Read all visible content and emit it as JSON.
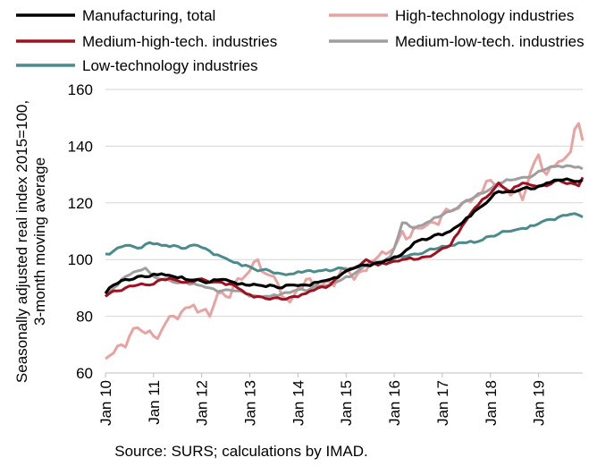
{
  "chart_data": {
    "type": "line",
    "ylabel": "Seasonally adjusted real index 2015=100, 3-month moving average",
    "ylabel_lines": [
      "Seasonally adjusted real index 2015=100,",
      "3-month moving average"
    ],
    "source": "Source: SURS; calculations by IMAD.",
    "ylim": [
      60,
      160
    ],
    "yticks": [
      60,
      80,
      100,
      120,
      140,
      160
    ],
    "grid": true,
    "legend_position": "top",
    "x_start": "Jan 10",
    "x_end": "Dec 19",
    "xtick_labels": [
      "Jan 10",
      "Jan 11",
      "Jan 12",
      "Jan 13",
      "Jan 14",
      "Jan 15",
      "Jan 16",
      "Jan 17",
      "Jan 18",
      "Jan 19"
    ],
    "series": [
      {
        "name": "Manufacturing, total",
        "color": "#000000",
        "keyframes": [
          [
            "Jan 10",
            88
          ],
          [
            "Mar 10",
            91
          ],
          [
            "Jun 10",
            93
          ],
          [
            "Sep 10",
            94
          ],
          [
            "Dec 10",
            94
          ],
          [
            "Mar 11",
            95
          ],
          [
            "Jun 11",
            94
          ],
          [
            "Sep 11",
            93
          ],
          [
            "Dec 11",
            93
          ],
          [
            "Mar 12",
            92
          ],
          [
            "Jun 12",
            93
          ],
          [
            "Sep 12",
            92
          ],
          [
            "Dec 12",
            91
          ],
          [
            "Mar 13",
            91
          ],
          [
            "Jun 13",
            91
          ],
          [
            "Sep 13",
            90
          ],
          [
            "Dec 13",
            91
          ],
          [
            "Mar 14",
            91
          ],
          [
            "Jun 14",
            92
          ],
          [
            "Sep 14",
            93
          ],
          [
            "Dec 14",
            95
          ],
          [
            "Mar 15",
            97
          ],
          [
            "Jun 15",
            98
          ],
          [
            "Sep 15",
            99
          ],
          [
            "Dec 15",
            100
          ],
          [
            "Mar 16",
            102
          ],
          [
            "Jun 16",
            106
          ],
          [
            "Sep 16",
            107
          ],
          [
            "Dec 16",
            109
          ],
          [
            "Mar 17",
            110
          ],
          [
            "Jun 17",
            113
          ],
          [
            "Sep 17",
            117
          ],
          [
            "Dec 17",
            120
          ],
          [
            "Mar 18",
            124
          ],
          [
            "Jun 18",
            124
          ],
          [
            "Sep 18",
            125
          ],
          [
            "Dec 18",
            125
          ],
          [
            "Mar 19",
            127
          ],
          [
            "Jun 19",
            128
          ],
          [
            "Sep 19",
            128
          ],
          [
            "Dec 19",
            128
          ]
        ]
      },
      {
        "name": "High-technology industries",
        "color": "#e8a3a0",
        "keyframes": [
          [
            "Jan 10",
            65
          ],
          [
            "Mar 10",
            67
          ],
          [
            "May 10",
            70
          ],
          [
            "Jul 10",
            73
          ],
          [
            "Sep 10",
            76
          ],
          [
            "Nov 10",
            74
          ],
          [
            "Jan 11",
            73
          ],
          [
            "Mar 11",
            75
          ],
          [
            "May 11",
            80
          ],
          [
            "Jul 11",
            79
          ],
          [
            "Sep 11",
            83
          ],
          [
            "Nov 11",
            84
          ],
          [
            "Jan 12",
            82
          ],
          [
            "Mar 12",
            80
          ],
          [
            "May 12",
            88
          ],
          [
            "Jul 12",
            87
          ],
          [
            "Sep 12",
            91
          ],
          [
            "Nov 12",
            93
          ],
          [
            "Jan 13",
            96
          ],
          [
            "Mar 13",
            100
          ],
          [
            "May 13",
            95
          ],
          [
            "Jul 13",
            94
          ],
          [
            "Sep 13",
            87
          ],
          [
            "Nov 13",
            85
          ],
          [
            "Jan 14",
            90
          ],
          [
            "Mar 14",
            93
          ],
          [
            "May 14",
            90
          ],
          [
            "Jul 14",
            91
          ],
          [
            "Sep 14",
            92
          ],
          [
            "Nov 14",
            94
          ],
          [
            "Jan 15",
            97
          ],
          [
            "Mar 15",
            93
          ],
          [
            "May 15",
            96
          ],
          [
            "Jul 15",
            99
          ],
          [
            "Sep 15",
            101
          ],
          [
            "Nov 15",
            102
          ],
          [
            "Jan 16",
            104
          ],
          [
            "Mar 16",
            110
          ],
          [
            "May 16",
            108
          ],
          [
            "Jul 16",
            111
          ],
          [
            "Sep 16",
            112
          ],
          [
            "Nov 16",
            113
          ],
          [
            "Jan 17",
            116
          ],
          [
            "Mar 17",
            117
          ],
          [
            "May 17",
            118
          ],
          [
            "Jul 17",
            121
          ],
          [
            "Sep 17",
            122
          ],
          [
            "Nov 17",
            124
          ],
          [
            "Jan 18",
            128
          ],
          [
            "Mar 18",
            126
          ],
          [
            "May 18",
            125
          ],
          [
            "Jul 18",
            124
          ],
          [
            "Sep 18",
            121
          ],
          [
            "Nov 18",
            131
          ],
          [
            "Jan 19",
            137
          ],
          [
            "Mar 19",
            130
          ],
          [
            "May 19",
            133
          ],
          [
            "Jul 19",
            135
          ],
          [
            "Sep 19",
            138
          ],
          [
            "Oct 19",
            146
          ],
          [
            "Nov 19",
            148
          ],
          [
            "Dec 19",
            142
          ]
        ]
      },
      {
        "name": "Medium-high-tech. industries",
        "color": "#a1101f",
        "keyframes": [
          [
            "Jan 10",
            87
          ],
          [
            "Mar 10",
            89
          ],
          [
            "Jun 10",
            90
          ],
          [
            "Sep 10",
            91
          ],
          [
            "Dec 10",
            91
          ],
          [
            "Mar 11",
            93
          ],
          [
            "Jun 11",
            93
          ],
          [
            "Sep 11",
            92
          ],
          [
            "Dec 11",
            93
          ],
          [
            "Mar 12",
            92
          ],
          [
            "Jun 12",
            92
          ],
          [
            "Sep 12",
            91
          ],
          [
            "Dec 12",
            88
          ],
          [
            "Mar 13",
            87
          ],
          [
            "Jun 13",
            86
          ],
          [
            "Sep 13",
            86
          ],
          [
            "Dec 13",
            87
          ],
          [
            "Mar 14",
            88
          ],
          [
            "Jun 14",
            90
          ],
          [
            "Sep 14",
            91
          ],
          [
            "Dec 14",
            95
          ],
          [
            "Mar 15",
            97
          ],
          [
            "Jun 15",
            100
          ],
          [
            "Sep 15",
            98
          ],
          [
            "Dec 15",
            99
          ],
          [
            "Mar 16",
            100
          ],
          [
            "Jun 16",
            100
          ],
          [
            "Sep 16",
            101
          ],
          [
            "Dec 16",
            103
          ],
          [
            "Mar 17",
            105
          ],
          [
            "Jun 17",
            112
          ],
          [
            "Sep 17",
            118
          ],
          [
            "Dec 17",
            122
          ],
          [
            "Mar 18",
            127
          ],
          [
            "Jun 18",
            124
          ],
          [
            "Sep 18",
            127
          ],
          [
            "Dec 18",
            126
          ],
          [
            "Mar 19",
            126
          ],
          [
            "Jun 19",
            128
          ],
          [
            "Sep 19",
            127
          ],
          [
            "Nov 19",
            126
          ],
          [
            "Dec 19",
            129
          ]
        ]
      },
      {
        "name": "Medium-low-tech. industries",
        "color": "#9e9e9e",
        "keyframes": [
          [
            "Jan 10",
            87
          ],
          [
            "Mar 10",
            90
          ],
          [
            "Jun 10",
            94
          ],
          [
            "Sep 10",
            96
          ],
          [
            "Nov 10",
            97
          ],
          [
            "Jan 11",
            94
          ],
          [
            "Mar 11",
            93
          ],
          [
            "Jun 11",
            92
          ],
          [
            "Sep 11",
            92
          ],
          [
            "Dec 11",
            91
          ],
          [
            "Mar 12",
            90
          ],
          [
            "Jun 12",
            89
          ],
          [
            "Sep 12",
            89
          ],
          [
            "Dec 12",
            88
          ],
          [
            "Mar 13",
            87
          ],
          [
            "Jun 13",
            87
          ],
          [
            "Sep 13",
            88
          ],
          [
            "Dec 13",
            89
          ],
          [
            "Mar 14",
            89
          ],
          [
            "Jun 14",
            91
          ],
          [
            "Sep 14",
            91
          ],
          [
            "Dec 14",
            93
          ],
          [
            "Mar 15",
            95
          ],
          [
            "Jun 15",
            98
          ],
          [
            "Sep 15",
            99
          ],
          [
            "Dec 15",
            101
          ],
          [
            "Jan 16",
            104
          ],
          [
            "Mar 16",
            113
          ],
          [
            "Jun 16",
            111
          ],
          [
            "Sep 16",
            113
          ],
          [
            "Dec 16",
            115
          ],
          [
            "Mar 17",
            117
          ],
          [
            "Jun 17",
            120
          ],
          [
            "Sep 17",
            122
          ],
          [
            "Dec 17",
            124
          ],
          [
            "Mar 18",
            127
          ],
          [
            "Jun 18",
            128
          ],
          [
            "Sep 18",
            129
          ],
          [
            "Dec 18",
            130
          ],
          [
            "Mar 19",
            132
          ],
          [
            "Jun 19",
            133
          ],
          [
            "Sep 19",
            133
          ],
          [
            "Dec 19",
            132
          ]
        ]
      },
      {
        "name": "Low-technology industries",
        "color": "#4a8b8c",
        "keyframes": [
          [
            "Jan 10",
            102
          ],
          [
            "Mar 10",
            103
          ],
          [
            "Jun 10",
            105
          ],
          [
            "Sep 10",
            104
          ],
          [
            "Dec 10",
            106
          ],
          [
            "Mar 11",
            105
          ],
          [
            "Jun 11",
            105
          ],
          [
            "Sep 11",
            104
          ],
          [
            "Dec 11",
            105
          ],
          [
            "Mar 12",
            103
          ],
          [
            "Jun 12",
            101
          ],
          [
            "Sep 12",
            99
          ],
          [
            "Dec 12",
            98
          ],
          [
            "Mar 13",
            96
          ],
          [
            "Jun 13",
            96
          ],
          [
            "Sep 13",
            95
          ],
          [
            "Dec 13",
            95
          ],
          [
            "Mar 14",
            96
          ],
          [
            "Jun 14",
            96
          ],
          [
            "Sep 14",
            96
          ],
          [
            "Dec 14",
            97
          ],
          [
            "Mar 15",
            97
          ],
          [
            "Jun 15",
            98
          ],
          [
            "Sep 15",
            99
          ],
          [
            "Dec 15",
            100
          ],
          [
            "Mar 16",
            101
          ],
          [
            "Jun 16",
            102
          ],
          [
            "Sep 16",
            103
          ],
          [
            "Dec 16",
            104
          ],
          [
            "Mar 17",
            105
          ],
          [
            "Jun 17",
            106
          ],
          [
            "Sep 17",
            106
          ],
          [
            "Dec 17",
            108
          ],
          [
            "Mar 18",
            109
          ],
          [
            "Jun 18",
            110
          ],
          [
            "Sep 18",
            111
          ],
          [
            "Dec 18",
            112
          ],
          [
            "Mar 19",
            114
          ],
          [
            "Jun 19",
            115
          ],
          [
            "Sep 19",
            116
          ],
          [
            "Dec 19",
            115
          ]
        ]
      }
    ]
  }
}
